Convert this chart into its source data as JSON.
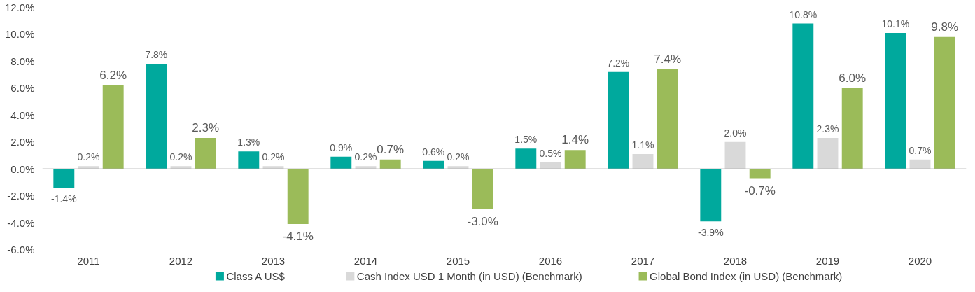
{
  "chart_data": {
    "type": "bar",
    "categories": [
      "2011",
      "2012",
      "2013",
      "2014",
      "2015",
      "2016",
      "2017",
      "2018",
      "2019",
      "2020"
    ],
    "ylim": [
      -6,
      12
    ],
    "yticks": [
      {
        "value": -6,
        "label": "-6.0%"
      },
      {
        "value": -4,
        "label": "-4.0%"
      },
      {
        "value": -2,
        "label": "-2.0%"
      },
      {
        "value": 0,
        "label": "0.0%"
      },
      {
        "value": 2,
        "label": "2.0%"
      },
      {
        "value": 4,
        "label": "4.0%"
      },
      {
        "value": 6,
        "label": "6.0%"
      },
      {
        "value": 8,
        "label": "8.0%"
      },
      {
        "value": 10,
        "label": "10.0%"
      },
      {
        "value": 12,
        "label": "12.0%"
      }
    ],
    "legend": "bottom",
    "series": [
      {
        "name": "Class A US$",
        "color": "#00a99d",
        "values": [
          -1.4,
          7.8,
          1.3,
          0.9,
          0.6,
          1.5,
          7.2,
          -3.9,
          10.8,
          10.1
        ],
        "value_labels": [
          "-1.4%",
          "7.8%",
          "1.3%",
          "0.9%",
          "0.6%",
          "1.5%",
          "7.2%",
          "-3.9%",
          "10.8%",
          "10.1%"
        ]
      },
      {
        "name": "Cash Index USD 1 Month (in USD) (Benchmark)",
        "color": "#d9d9d9",
        "values": [
          0.2,
          0.2,
          0.2,
          0.2,
          0.2,
          0.5,
          1.1,
          2.0,
          2.3,
          0.7
        ],
        "value_labels": [
          "0.2%",
          "0.2%",
          "0.2%",
          "0.2%",
          "0.2%",
          "0.5%",
          "1.1%",
          "2.0%",
          "2.3%",
          "0.7%"
        ]
      },
      {
        "name": "Global Bond Index (in USD) (Benchmark)",
        "color": "#9bbb59",
        "values": [
          6.2,
          2.3,
          -4.1,
          0.7,
          -3.0,
          1.4,
          7.4,
          -0.7,
          6.0,
          9.8
        ],
        "value_labels": [
          "6.2%",
          "2.3%",
          "-4.1%",
          "0.7%",
          "-3.0%",
          "1.4%",
          "7.4%",
          "-0.7%",
          "6.0%",
          "9.8%"
        ]
      }
    ]
  }
}
